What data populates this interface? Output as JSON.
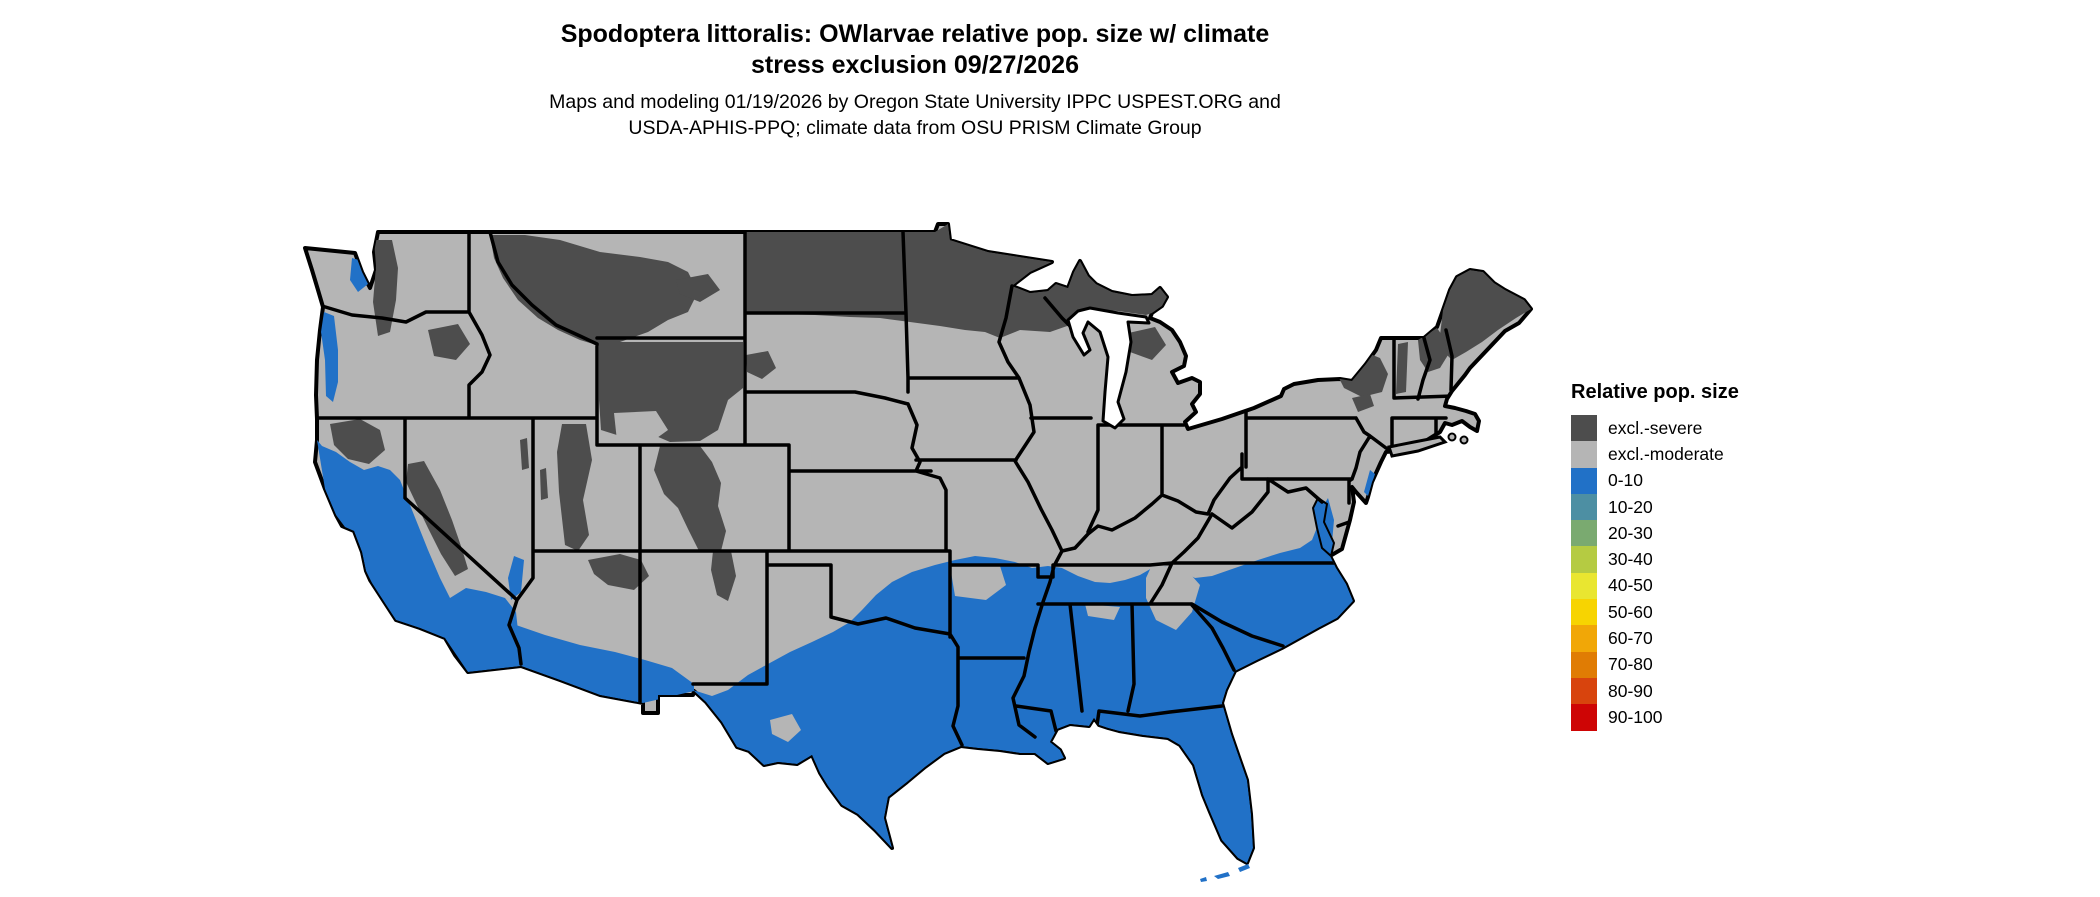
{
  "title": {
    "line1": "Spodoptera littoralis: OWlarvae relative pop. size w/ climate",
    "line2": "stress exclusion 09/27/2026"
  },
  "subtitle": {
    "line1": "Maps and modeling 01/19/2026 by Oregon State University IPPC USPEST.ORG and",
    "line2": "USDA-APHIS-PPQ; climate data from OSU PRISM Climate Group"
  },
  "legend": {
    "title": "Relative pop. size",
    "items": [
      {
        "label": "excl.-severe",
        "color_key": "excl_severe"
      },
      {
        "label": "excl.-moderate",
        "color_key": "excl_moderate"
      },
      {
        "label": "0-10",
        "color_key": "pop_0_10"
      },
      {
        "label": "10-20",
        "color_key": "pop_10_20"
      },
      {
        "label": "20-30",
        "color_key": "pop_20_30"
      },
      {
        "label": "30-40",
        "color_key": "pop_30_40"
      },
      {
        "label": "40-50",
        "color_key": "pop_40_50"
      },
      {
        "label": "50-60",
        "color_key": "pop_50_60"
      },
      {
        "label": "60-70",
        "color_key": "pop_60_70"
      },
      {
        "label": "70-80",
        "color_key": "pop_70_80"
      },
      {
        "label": "80-90",
        "color_key": "pop_80_90"
      },
      {
        "label": "90-100",
        "color_key": "pop_90_100"
      }
    ]
  },
  "colors": {
    "excl_severe": "#4d4d4d",
    "excl_moderate": "#b5b5b5",
    "pop_0_10": "#2171c7",
    "pop_10_20": "#4d8fa3",
    "pop_20_30": "#7aaa70",
    "pop_30_40": "#b5cb42",
    "pop_40_50": "#e9e630",
    "pop_50_60": "#f7d401",
    "pop_60_70": "#f1a707",
    "pop_70_80": "#e07c04",
    "pop_80_90": "#d8440d",
    "pop_90_100": "#ce0505",
    "state_border": "#000000",
    "water": "#ffffff"
  },
  "map": {
    "region": "Contiguous United States",
    "categories_visible_on_map": [
      "excl.-severe",
      "excl.-moderate",
      "0-10"
    ]
  }
}
